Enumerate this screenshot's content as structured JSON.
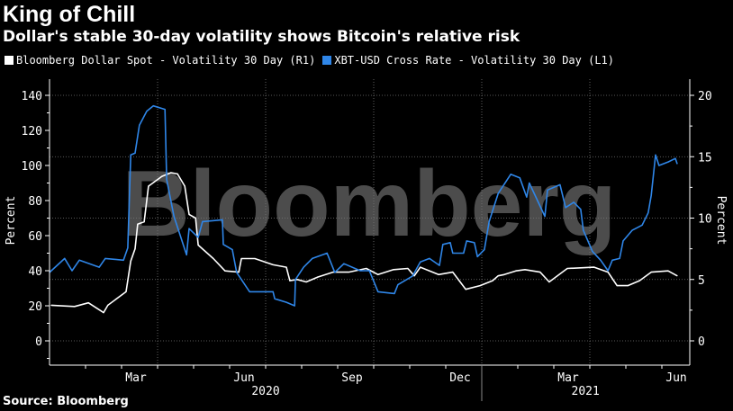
{
  "header": {
    "title": "King of Chill",
    "subtitle": "Dollar's stable 30-day volatility shows Bitcoin's relative risk"
  },
  "footer": {
    "source": "Source: Bloomberg"
  },
  "watermark": "Bloomberg",
  "colors": {
    "dollar": "#ffffff",
    "xbt": "#2f86e8",
    "background": "#000000",
    "watermark": "#5a5a5a"
  },
  "chart_data": {
    "type": "line",
    "title": "King of Chill",
    "subtitle": "Dollar's stable 30-day volatility shows Bitcoin's relative risk",
    "x_unit": "decimal year",
    "xlim": [
      2020.0,
      2021.48
    ],
    "x_ticks": [
      {
        "label": "Mar",
        "at": 2020.2
      },
      {
        "label": "Jun",
        "at": 2020.45
      },
      {
        "label": "Sep",
        "at": 2020.7
      },
      {
        "label": "Dec",
        "at": 2020.95
      },
      {
        "label": "Mar",
        "at": 2021.2
      },
      {
        "label": "Jun",
        "at": 2021.45
      }
    ],
    "year_labels": [
      {
        "label": "2020",
        "at": 2020.5
      },
      {
        "label": "2021",
        "at": 2021.24
      }
    ],
    "left_axis": {
      "label": "Percent",
      "ylim": [
        -20,
        150
      ],
      "ticks": [
        0,
        20,
        40,
        60,
        80,
        100,
        120,
        140
      ]
    },
    "right_axis": {
      "label": "Percent",
      "ylim": [
        -2.857,
        21.43
      ],
      "ticks": [
        0,
        5,
        10,
        15,
        20
      ]
    },
    "grid": true,
    "legend_position": "top-left",
    "series": [
      {
        "name": "Bloomberg Dollar Spot - Volatility 30 Day (R1)",
        "axis": "right",
        "color": "#ffffff",
        "x": [
          2020.004,
          2020.058,
          2020.09,
          2020.125,
          2020.135,
          2020.177,
          2020.188,
          2020.198,
          2020.204,
          2020.219,
          2020.229,
          2020.26,
          2020.281,
          2020.296,
          2020.313,
          2020.323,
          2020.338,
          2020.344,
          2020.379,
          2020.406,
          2020.438,
          2020.444,
          2020.475,
          2020.517,
          2020.548,
          2020.556,
          2020.573,
          2020.594,
          2020.621,
          2020.656,
          2020.692,
          2020.733,
          2020.76,
          2020.796,
          2020.829,
          2020.844,
          2020.858,
          2020.9,
          2020.933,
          2020.963,
          2020.996,
          2021.025,
          2021.038,
          2021.052,
          2021.079,
          2021.1,
          2021.135,
          2021.156,
          2021.198,
          2021.26,
          2021.292,
          2021.313,
          2021.338,
          2021.365,
          2021.392,
          2021.431,
          2021.452
        ],
        "y": [
          2.9,
          2.8,
          3.1,
          2.3,
          2.9,
          4.0,
          6.5,
          7.5,
          9.5,
          9.7,
          12.6,
          13.4,
          13.7,
          13.6,
          12.6,
          10.3,
          10.0,
          7.8,
          6.7,
          5.7,
          5.6,
          6.7,
          6.7,
          6.2,
          6.0,
          4.9,
          5.0,
          4.8,
          5.2,
          5.6,
          5.6,
          5.9,
          5.4,
          5.8,
          5.9,
          5.3,
          6.0,
          5.4,
          5.6,
          4.2,
          4.5,
          4.9,
          5.3,
          5.4,
          5.7,
          5.8,
          5.6,
          4.8,
          5.9,
          6.0,
          5.6,
          4.5,
          4.5,
          4.9,
          5.6,
          5.7,
          5.3
        ]
      },
      {
        "name": "XBT-USD Cross Rate - Volatility 30 Day (L1)",
        "axis": "left",
        "color": "#2f86e8",
        "x": [
          2020.0,
          2020.035,
          2020.052,
          2020.069,
          2020.115,
          2020.129,
          2020.171,
          2020.181,
          2020.188,
          2020.198,
          2020.208,
          2020.225,
          2020.24,
          2020.267,
          2020.271,
          2020.288,
          2020.317,
          2020.323,
          2020.344,
          2020.354,
          2020.4,
          2020.402,
          2020.423,
          2020.433,
          2020.463,
          2020.517,
          2020.521,
          2020.548,
          2020.567,
          2020.569,
          2020.588,
          2020.608,
          2020.642,
          2020.66,
          2020.681,
          2020.719,
          2020.74,
          2020.76,
          2020.798,
          2020.806,
          2020.84,
          2020.858,
          2020.879,
          2020.902,
          2020.91,
          2020.927,
          2020.933,
          2020.958,
          2020.965,
          2020.983,
          2020.99,
          2021.006,
          2021.017,
          2021.038,
          2021.067,
          2021.088,
          2021.104,
          2021.11,
          2021.146,
          2021.152,
          2021.181,
          2021.194,
          2021.213,
          2021.229,
          2021.235,
          2021.256,
          2021.275,
          2021.292,
          2021.302,
          2021.319,
          2021.327,
          2021.348,
          2021.371,
          2021.385,
          2021.392,
          2021.402,
          2021.41,
          2021.431,
          2021.448,
          2021.452
        ],
        "y": [
          39,
          47,
          40,
          46,
          42,
          47,
          46,
          53,
          106,
          107,
          123,
          131,
          134,
          132,
          92,
          71,
          49,
          64,
          59,
          68,
          69,
          55,
          52,
          39,
          28,
          28,
          24,
          22,
          20,
          35,
          42,
          47,
          50,
          39,
          44,
          40,
          40,
          28,
          27,
          32,
          37,
          45,
          47,
          43,
          55,
          56,
          50,
          50,
          57,
          56,
          48,
          52,
          68,
          84,
          95,
          93,
          82,
          90,
          71,
          86,
          89,
          76,
          79,
          75,
          63,
          51,
          46,
          40,
          46,
          47,
          57,
          63,
          66,
          73,
          83,
          106,
          100,
          102,
          104,
          101
        ]
      }
    ]
  }
}
